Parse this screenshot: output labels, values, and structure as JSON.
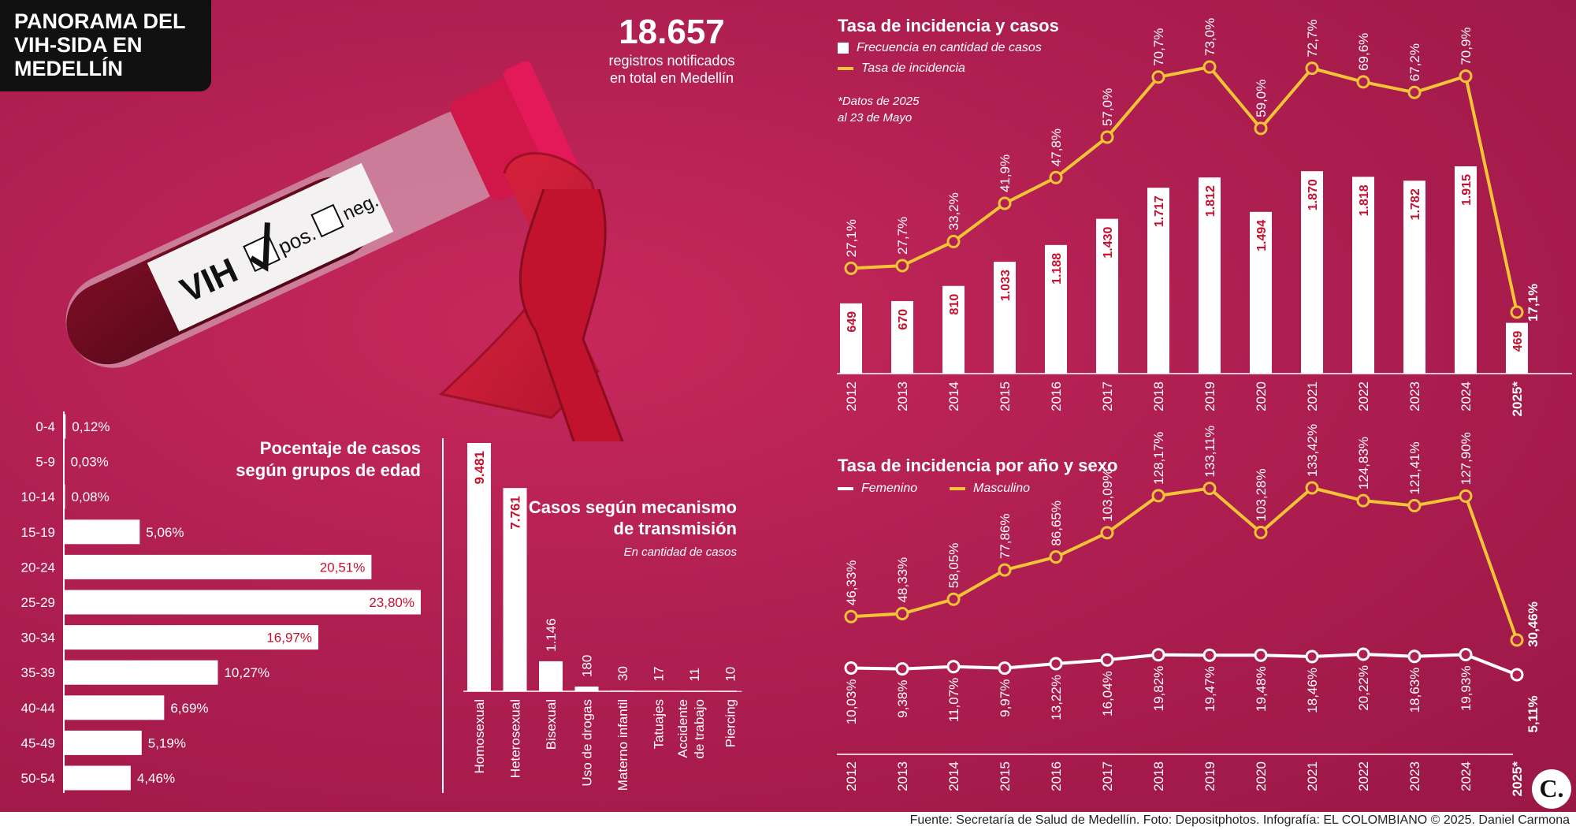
{
  "title": "PANORAMA DEL\nVIH-SIDA EN\nMEDELLÍN",
  "total": {
    "value": "18.657",
    "caption_line1": "registros notificados",
    "caption_line2": "en total en Medellín"
  },
  "tube_label": {
    "vih": "VIH",
    "pos": "pos.",
    "neg": "neg."
  },
  "footer": "Fuente: Secretaría de Salud de Medellín. Foto: Depositphotos. Infografía: EL COLOMBIANO © 2025. Daniel Carmona",
  "logo": "C.",
  "colors": {
    "bg": "#b01f51",
    "bar": "#ffffff",
    "line_yellow": "#f2c436",
    "label_red": "#c8102e"
  },
  "chart_data": [
    {
      "id": "incidence",
      "type": "bar",
      "title": "Tasa de incidencia y casos",
      "note_line1": "*Datos de 2025",
      "note_line2": "al 23 de Mayo",
      "legend": [
        "Frecuencia en cantidad de casos",
        "Tasa de incidencia"
      ],
      "categories": [
        "2012",
        "2013",
        "2014",
        "2015",
        "2016",
        "2017",
        "2018",
        "2019",
        "2020",
        "2021",
        "2022",
        "2023",
        "2024",
        "2025*"
      ],
      "series": [
        {
          "name": "Frecuencia en cantidad de casos",
          "type": "bar",
          "values": [
            649,
            670,
            810,
            1033,
            1188,
            1430,
            1717,
            1812,
            1494,
            1870,
            1818,
            1782,
            1915,
            469
          ],
          "labels": [
            "649",
            "670",
            "810",
            "1.033",
            "1.188",
            "1.430",
            "1.717",
            "1.812",
            "1.494",
            "1.870",
            "1.818",
            "1.782",
            "1.915",
            "469"
          ]
        },
        {
          "name": "Tasa de incidencia",
          "type": "line",
          "values": [
            27.1,
            27.7,
            33.2,
            41.9,
            47.8,
            57.0,
            70.7,
            73.0,
            59.0,
            72.7,
            69.6,
            67.2,
            70.9,
            17.1
          ],
          "labels": [
            "27,1%",
            "27,7%",
            "33,2%",
            "41,9%",
            "47,8%",
            "57,0%",
            "70,7%",
            "73,0%",
            "59,0%",
            "72,7%",
            "69,6%",
            "67,2%",
            "70,9%",
            "17,1%"
          ]
        }
      ]
    },
    {
      "id": "sex",
      "type": "line",
      "title": "Tasa de incidencia por año y sexo",
      "legend": [
        "Femenino",
        "Masculino"
      ],
      "categories": [
        "2012",
        "2013",
        "2014",
        "2015",
        "2016",
        "2017",
        "2018",
        "2019",
        "2020",
        "2021",
        "2022",
        "2023",
        "2024",
        "2025*"
      ],
      "series": [
        {
          "name": "Femenino",
          "values": [
            10.03,
            9.38,
            11.07,
            9.97,
            13.22,
            16.04,
            19.82,
            19.47,
            19.48,
            18.46,
            20.22,
            18.63,
            19.93,
            5.11
          ],
          "labels": [
            "10,03%",
            "9,38%",
            "11,07%",
            "9,97%",
            "13,22%",
            "16,04%",
            "19,82%",
            "19,47%",
            "19,48%",
            "18,46%",
            "20,22%",
            "18,63%",
            "19,93%",
            "5,11%"
          ]
        },
        {
          "name": "Masculino",
          "values": [
            46.33,
            48.33,
            58.05,
            77.86,
            86.65,
            103.09,
            128.17,
            133.11,
            103.28,
            133.42,
            124.83,
            121.41,
            127.9,
            30.46
          ],
          "labels": [
            "46,33%",
            "48,33%",
            "58,05%",
            "77,86%",
            "86,65%",
            "103,09%",
            "128,17%",
            "133,11%",
            "103,28%",
            "133,42%",
            "124,83%",
            "121,41%",
            "127,90%",
            "30,46%"
          ]
        }
      ]
    },
    {
      "id": "age",
      "type": "bar",
      "orientation": "horizontal",
      "title_line1": "Pocentaje de casos",
      "title_line2": "según grupos de edad",
      "categories": [
        "0-4",
        "5-9",
        "10-14",
        "15-19",
        "20-24",
        "25-29",
        "30-34",
        "35-39",
        "40-44",
        "45-49",
        "50-54"
      ],
      "values": [
        0.12,
        0.03,
        0.08,
        5.06,
        20.51,
        23.8,
        16.97,
        10.27,
        6.69,
        5.19,
        4.46
      ],
      "labels": [
        "0,12%",
        "0,03%",
        "0,08%",
        "5,06%",
        "20,51%",
        "23,80%",
        "16,97%",
        "10,27%",
        "6,69%",
        "5,19%",
        "4,46%"
      ]
    },
    {
      "id": "transmission",
      "type": "bar",
      "title_line1": "Casos según mecanismo",
      "title_line2": "de transmisión",
      "subtitle": "En cantidad de casos",
      "categories": [
        "Homosexual",
        "Heterosexual",
        "Bisexual",
        "Uso de drogas",
        "Materno infantil",
        "Tatuajes",
        "Accidente de trabajo",
        "Piercing"
      ],
      "category_lines": [
        [
          "Homosexual"
        ],
        [
          "Heterosexual"
        ],
        [
          "Bisexual"
        ],
        [
          "Uso de drogas"
        ],
        [
          "Materno infantil"
        ],
        [
          "Tatuajes"
        ],
        [
          "Accidente",
          "de trabajo"
        ],
        [
          "Piercing"
        ]
      ],
      "values": [
        9481,
        7761,
        1146,
        180,
        30,
        17,
        11,
        10
      ],
      "labels": [
        "9.481",
        "7.761",
        "1.146",
        "180",
        "30",
        "17",
        "11",
        "10"
      ]
    }
  ]
}
